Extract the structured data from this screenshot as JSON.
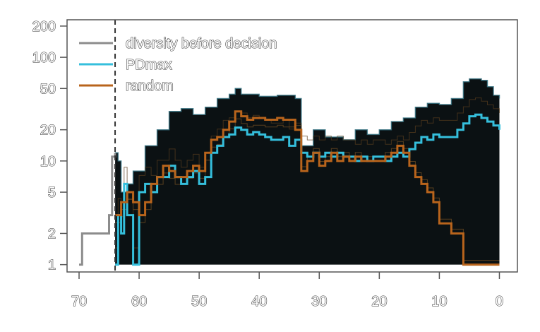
{
  "chart_data": {
    "type": "line",
    "title": "",
    "xlabel": "",
    "ylabel": "",
    "x_reversed": true,
    "xlim": [
      72,
      -3
    ],
    "ylim": [
      0.85,
      230
    ],
    "y_scale": "log",
    "x_ticks": [
      70,
      60,
      50,
      40,
      30,
      20,
      10,
      0
    ],
    "y_ticks": [
      1,
      2,
      5,
      10,
      20,
      50,
      100,
      200
    ],
    "vline_x": 64,
    "legend": {
      "position": "top-left",
      "entries": [
        {
          "label": "diversity before decision",
          "color": "#8c8c8c"
        },
        {
          "label": "PDmax",
          "color": "#35bfdc"
        },
        {
          "label": "random",
          "color": "#b8641c"
        }
      ]
    },
    "series": [
      {
        "name": "diversity before decision",
        "color": "#8c8c8c",
        "points": [
          [
            70,
            1
          ],
          [
            69.5,
            2
          ],
          [
            66,
            2
          ],
          [
            65,
            3
          ],
          [
            64.5,
            11
          ],
          [
            64,
            12
          ],
          [
            63.5,
            10
          ],
          [
            63,
            5
          ],
          [
            62,
            6
          ],
          [
            61,
            8
          ],
          [
            59,
            14
          ],
          [
            57,
            20
          ],
          [
            55,
            30
          ],
          [
            53,
            32
          ],
          [
            51,
            28
          ],
          [
            49,
            33
          ],
          [
            47,
            40
          ],
          [
            45,
            44
          ],
          [
            44,
            50
          ],
          [
            43,
            44
          ],
          [
            40,
            42
          ],
          [
            37,
            43
          ],
          [
            34,
            40
          ],
          [
            33,
            14
          ],
          [
            31,
            20
          ],
          [
            29,
            17
          ],
          [
            26,
            16
          ],
          [
            24,
            20
          ],
          [
            22,
            18
          ],
          [
            20,
            20
          ],
          [
            18,
            24
          ],
          [
            16,
            26
          ],
          [
            14,
            33
          ],
          [
            12,
            36
          ],
          [
            10,
            35
          ],
          [
            8,
            40
          ],
          [
            6,
            58
          ],
          [
            5,
            62
          ],
          [
            3,
            60
          ],
          [
            2,
            52
          ],
          [
            1,
            43
          ],
          [
            0,
            40
          ]
        ]
      },
      {
        "name": "PDmax",
        "color": "#35bfdc",
        "points": [
          [
            64,
            1
          ],
          [
            63.5,
            3
          ],
          [
            63,
            2
          ],
          [
            62.5,
            6
          ],
          [
            62,
            3
          ],
          [
            61,
            1
          ],
          [
            60,
            5
          ],
          [
            59,
            6
          ],
          [
            58,
            5
          ],
          [
            57,
            7
          ],
          [
            56,
            7
          ],
          [
            55,
            9
          ],
          [
            54,
            7
          ],
          [
            53,
            6
          ],
          [
            52,
            7
          ],
          [
            51,
            8
          ],
          [
            50,
            6
          ],
          [
            49,
            7
          ],
          [
            48,
            12
          ],
          [
            47,
            14
          ],
          [
            46,
            17
          ],
          [
            45,
            18
          ],
          [
            44,
            21
          ],
          [
            43,
            20
          ],
          [
            42,
            18
          ],
          [
            41,
            19
          ],
          [
            40,
            18
          ],
          [
            39,
            17
          ],
          [
            38,
            16
          ],
          [
            37,
            16
          ],
          [
            36,
            17
          ],
          [
            35,
            14
          ],
          [
            34,
            16
          ],
          [
            33,
            12
          ],
          [
            32,
            11
          ],
          [
            31,
            12
          ],
          [
            30,
            11
          ],
          [
            29,
            12
          ],
          [
            28,
            11
          ],
          [
            27,
            12
          ],
          [
            26,
            11
          ],
          [
            25,
            11
          ],
          [
            24,
            10
          ],
          [
            23,
            11
          ],
          [
            22,
            10
          ],
          [
            21,
            11
          ],
          [
            20,
            11
          ],
          [
            19,
            10
          ],
          [
            18,
            11
          ],
          [
            17,
            12
          ],
          [
            16,
            11
          ],
          [
            15,
            13
          ],
          [
            14,
            15
          ],
          [
            13,
            17
          ],
          [
            12,
            16
          ],
          [
            11,
            18
          ],
          [
            10,
            17
          ],
          [
            9,
            17
          ],
          [
            8,
            17
          ],
          [
            7,
            20
          ],
          [
            6,
            23
          ],
          [
            5,
            27
          ],
          [
            4,
            28
          ],
          [
            3,
            26
          ],
          [
            2,
            24
          ],
          [
            1,
            22
          ],
          [
            0,
            20
          ]
        ]
      },
      {
        "name": "random",
        "color": "#b8641c",
        "points": [
          [
            64,
            3
          ],
          [
            63,
            4
          ],
          [
            62,
            5
          ],
          [
            61,
            4
          ],
          [
            60,
            3
          ],
          [
            59,
            4
          ],
          [
            58,
            6
          ],
          [
            57,
            7
          ],
          [
            56,
            9
          ],
          [
            55,
            8
          ],
          [
            54,
            7
          ],
          [
            53,
            7
          ],
          [
            52,
            8
          ],
          [
            51,
            9
          ],
          [
            50,
            8
          ],
          [
            49,
            12
          ],
          [
            48,
            16
          ],
          [
            47,
            17
          ],
          [
            46,
            20
          ],
          [
            45,
            24
          ],
          [
            44,
            30
          ],
          [
            43,
            27
          ],
          [
            42,
            25
          ],
          [
            41,
            26
          ],
          [
            40,
            26
          ],
          [
            39,
            25
          ],
          [
            38,
            25
          ],
          [
            37,
            26
          ],
          [
            36,
            25
          ],
          [
            35,
            25
          ],
          [
            34,
            20
          ],
          [
            33,
            8
          ],
          [
            32,
            10
          ],
          [
            31,
            12
          ],
          [
            30,
            9
          ],
          [
            29,
            10
          ],
          [
            28,
            12
          ],
          [
            27,
            10
          ],
          [
            26,
            11
          ],
          [
            25,
            10
          ],
          [
            24,
            11
          ],
          [
            23,
            10
          ],
          [
            22,
            10
          ],
          [
            21,
            10
          ],
          [
            20,
            10
          ],
          [
            19,
            11
          ],
          [
            18,
            12
          ],
          [
            17,
            14
          ],
          [
            16,
            12
          ],
          [
            15,
            9
          ],
          [
            14,
            7
          ],
          [
            13,
            6
          ],
          [
            12,
            5
          ],
          [
            11,
            4
          ],
          [
            10,
            2.5
          ],
          [
            8,
            2
          ],
          [
            7,
            2
          ],
          [
            6,
            1
          ],
          [
            4,
            1
          ],
          [
            2,
            1
          ],
          [
            0,
            1
          ]
        ]
      }
    ]
  }
}
